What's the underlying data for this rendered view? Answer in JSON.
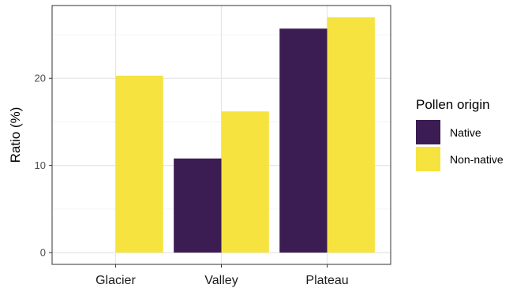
{
  "chart_data": {
    "type": "bar",
    "title": "",
    "xlabel": "",
    "ylabel": "Ratio (%)",
    "categories": [
      "Glacier",
      "Valley",
      "Plateau"
    ],
    "series": [
      {
        "name": "Native",
        "color": "#3b1c53",
        "values": [
          0,
          10.8,
          25.7
        ]
      },
      {
        "name": "Non-native",
        "color": "#f6e33f",
        "values": [
          20.3,
          16.2,
          27.0
        ]
      }
    ],
    "ylim": [
      -1.35,
      28.35
    ],
    "yticks": [
      0,
      10,
      20
    ],
    "ytick_labels": [
      "0",
      "10",
      "20"
    ],
    "grid": true,
    "legend": {
      "title": "Pollen origin",
      "position": "right"
    }
  }
}
